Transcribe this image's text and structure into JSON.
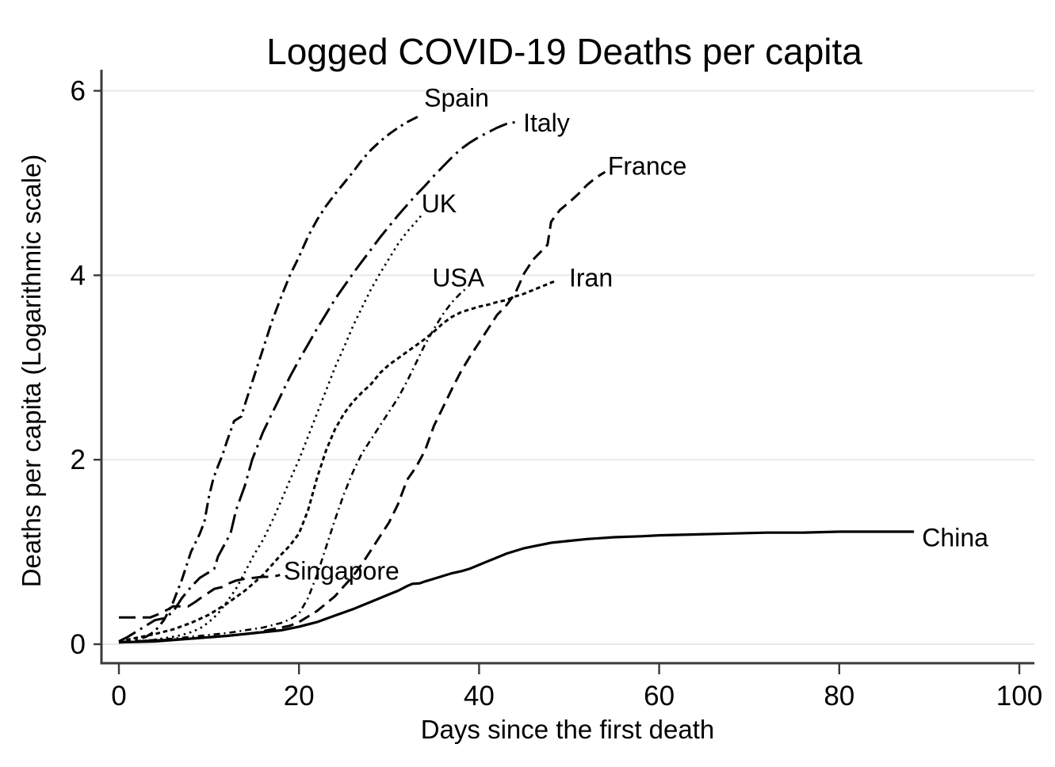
{
  "colors": {
    "background": "#ffffff",
    "line": "#000000",
    "grid": "#e8e8e8",
    "axis": "#3a3a3a",
    "text": "#000000"
  },
  "chart_data": {
    "type": "line",
    "title": "Logged COVID-19 Deaths per capita",
    "xlabel": "Days since the first death",
    "ylabel": "Deaths per capita (Logarithmic scale)",
    "xlim": [
      0,
      101.5
    ],
    "ylim": [
      0,
      6.4
    ],
    "xticks": [
      0,
      20,
      40,
      60,
      80,
      100
    ],
    "yticks": [
      0,
      2,
      4,
      6
    ],
    "grid": "horizontal",
    "legend": "inline-labels-at-line-ends",
    "series": [
      {
        "name": "Spain",
        "dash_style": "dash-dot",
        "label": {
          "day": 33.9,
          "value": 5.83
        },
        "points": [
          [
            0,
            0.02
          ],
          [
            1,
            0.03
          ],
          [
            2,
            0.05
          ],
          [
            3,
            0.08
          ],
          [
            4,
            0.14
          ],
          [
            5,
            0.26
          ],
          [
            6,
            0.45
          ],
          [
            7,
            0.7
          ],
          [
            8,
            1.0
          ],
          [
            9,
            1.2
          ],
          [
            9.5,
            1.33
          ],
          [
            10,
            1.6
          ],
          [
            10.5,
            1.8
          ],
          [
            11,
            1.93
          ],
          [
            11.5,
            2.05
          ],
          [
            12,
            2.2
          ],
          [
            12.8,
            2.42
          ],
          [
            13.6,
            2.47
          ],
          [
            14,
            2.6
          ],
          [
            15,
            2.9
          ],
          [
            16,
            3.2
          ],
          [
            17,
            3.5
          ],
          [
            18,
            3.76
          ],
          [
            19,
            4.0
          ],
          [
            20,
            4.2
          ],
          [
            21,
            4.42
          ],
          [
            22,
            4.6
          ],
          [
            23,
            4.75
          ],
          [
            24,
            4.88
          ],
          [
            25,
            5.0
          ],
          [
            26,
            5.12
          ],
          [
            27,
            5.25
          ],
          [
            28,
            5.36
          ],
          [
            29,
            5.45
          ],
          [
            30,
            5.53
          ],
          [
            31,
            5.6
          ],
          [
            32,
            5.66
          ],
          [
            33,
            5.71
          ],
          [
            33.6,
            5.74
          ]
        ]
      },
      {
        "name": "Italy",
        "dash_style": "long-dash-dot",
        "label": {
          "day": 44.9,
          "value": 5.56
        },
        "points": [
          [
            0,
            0.03
          ],
          [
            1,
            0.08
          ],
          [
            2,
            0.14
          ],
          [
            3,
            0.2
          ],
          [
            4,
            0.26
          ],
          [
            5,
            0.28
          ],
          [
            6,
            0.35
          ],
          [
            7,
            0.5
          ],
          [
            8,
            0.62
          ],
          [
            9,
            0.72
          ],
          [
            10,
            0.78
          ],
          [
            10.6,
            0.82
          ],
          [
            11,
            0.95
          ],
          [
            12,
            1.13
          ],
          [
            12.4,
            1.2
          ],
          [
            13,
            1.45
          ],
          [
            14,
            1.72
          ],
          [
            14.8,
            2.0
          ],
          [
            16,
            2.3
          ],
          [
            17,
            2.5
          ],
          [
            18,
            2.7
          ],
          [
            19,
            2.9
          ],
          [
            20,
            3.08
          ],
          [
            21,
            3.25
          ],
          [
            22,
            3.42
          ],
          [
            23,
            3.58
          ],
          [
            24,
            3.74
          ],
          [
            25,
            3.88
          ],
          [
            26,
            4.02
          ],
          [
            27,
            4.15
          ],
          [
            28,
            4.28
          ],
          [
            29,
            4.41
          ],
          [
            30,
            4.53
          ],
          [
            31,
            4.65
          ],
          [
            32,
            4.76
          ],
          [
            33,
            4.87
          ],
          [
            34,
            4.97
          ],
          [
            35,
            5.08
          ],
          [
            36,
            5.18
          ],
          [
            37,
            5.28
          ],
          [
            38,
            5.37
          ],
          [
            39,
            5.44
          ],
          [
            40,
            5.5
          ],
          [
            41,
            5.55
          ],
          [
            42,
            5.6
          ],
          [
            43,
            5.64
          ],
          [
            44.5,
            5.67
          ]
        ]
      },
      {
        "name": "France",
        "dash_style": "dash",
        "label": {
          "day": 54.3,
          "value": 5.09
        },
        "points": [
          [
            0,
            0.02
          ],
          [
            4,
            0.04
          ],
          [
            8,
            0.06
          ],
          [
            12,
            0.09
          ],
          [
            15,
            0.12
          ],
          [
            17,
            0.16
          ],
          [
            19,
            0.2
          ],
          [
            20,
            0.24
          ],
          [
            21,
            0.3
          ],
          [
            22,
            0.36
          ],
          [
            23,
            0.44
          ],
          [
            24,
            0.52
          ],
          [
            25,
            0.63
          ],
          [
            26,
            0.74
          ],
          [
            27,
            0.87
          ],
          [
            28,
            1.02
          ],
          [
            29,
            1.17
          ],
          [
            30,
            1.32
          ],
          [
            31,
            1.52
          ],
          [
            32,
            1.78
          ],
          [
            33,
            1.92
          ],
          [
            34,
            2.1
          ],
          [
            35,
            2.37
          ],
          [
            36,
            2.57
          ],
          [
            37,
            2.77
          ],
          [
            38,
            2.96
          ],
          [
            39,
            3.12
          ],
          [
            40,
            3.27
          ],
          [
            41,
            3.42
          ],
          [
            42,
            3.57
          ],
          [
            43,
            3.67
          ],
          [
            44,
            3.8
          ],
          [
            45,
            4.02
          ],
          [
            46,
            4.17
          ],
          [
            47,
            4.27
          ],
          [
            47.6,
            4.33
          ],
          [
            48,
            4.58
          ],
          [
            48.6,
            4.66
          ],
          [
            49,
            4.71
          ],
          [
            50,
            4.79
          ],
          [
            51,
            4.88
          ],
          [
            52,
            4.98
          ],
          [
            53,
            5.06
          ],
          [
            54,
            5.12
          ]
        ]
      },
      {
        "name": "UK",
        "dash_style": "dot",
        "label": {
          "day": 33.6,
          "value": 4.68
        },
        "points": [
          [
            0,
            0.02
          ],
          [
            2,
            0.03
          ],
          [
            4,
            0.05
          ],
          [
            6,
            0.08
          ],
          [
            7,
            0.1
          ],
          [
            8,
            0.13
          ],
          [
            9,
            0.17
          ],
          [
            10,
            0.24
          ],
          [
            11,
            0.33
          ],
          [
            12,
            0.46
          ],
          [
            13,
            0.6
          ],
          [
            14,
            0.78
          ],
          [
            15,
            0.97
          ],
          [
            16,
            1.13
          ],
          [
            17,
            1.33
          ],
          [
            18,
            1.55
          ],
          [
            19,
            1.78
          ],
          [
            20,
            2.0
          ],
          [
            21,
            2.25
          ],
          [
            22,
            2.5
          ],
          [
            23,
            2.75
          ],
          [
            24,
            3.0
          ],
          [
            25,
            3.22
          ],
          [
            26,
            3.45
          ],
          [
            27,
            3.65
          ],
          [
            28,
            3.85
          ],
          [
            29,
            4.02
          ],
          [
            30,
            4.18
          ],
          [
            31,
            4.34
          ],
          [
            32,
            4.47
          ],
          [
            33,
            4.58
          ],
          [
            33.6,
            4.65
          ]
        ]
      },
      {
        "name": "USA",
        "dash_style": "fine-dash-dot",
        "label": {
          "day": 34.8,
          "value": 3.88
        },
        "points": [
          [
            0,
            0.02
          ],
          [
            3,
            0.04
          ],
          [
            6,
            0.06
          ],
          [
            9,
            0.09
          ],
          [
            12,
            0.12
          ],
          [
            14,
            0.15
          ],
          [
            16,
            0.18
          ],
          [
            18,
            0.23
          ],
          [
            19,
            0.27
          ],
          [
            20,
            0.33
          ],
          [
            21,
            0.5
          ],
          [
            22,
            0.75
          ],
          [
            23,
            1.05
          ],
          [
            24,
            1.35
          ],
          [
            25,
            1.63
          ],
          [
            26,
            1.87
          ],
          [
            27,
            2.07
          ],
          [
            28,
            2.22
          ],
          [
            29,
            2.37
          ],
          [
            30,
            2.52
          ],
          [
            31,
            2.67
          ],
          [
            32,
            2.85
          ],
          [
            33,
            3.05
          ],
          [
            34,
            3.25
          ],
          [
            35,
            3.42
          ],
          [
            36,
            3.58
          ],
          [
            37,
            3.71
          ],
          [
            38,
            3.81
          ],
          [
            38.6,
            3.86
          ]
        ]
      },
      {
        "name": "Iran",
        "dash_style": "short-dash",
        "label": {
          "day": 50.0,
          "value": 3.88
        },
        "points": [
          [
            0,
            0.03
          ],
          [
            2,
            0.07
          ],
          [
            4,
            0.11
          ],
          [
            6,
            0.16
          ],
          [
            8,
            0.23
          ],
          [
            10,
            0.32
          ],
          [
            12,
            0.44
          ],
          [
            14,
            0.58
          ],
          [
            16,
            0.75
          ],
          [
            18,
            0.97
          ],
          [
            19,
            1.07
          ],
          [
            20,
            1.2
          ],
          [
            21,
            1.45
          ],
          [
            22,
            1.8
          ],
          [
            23,
            2.1
          ],
          [
            24,
            2.33
          ],
          [
            25,
            2.5
          ],
          [
            26,
            2.63
          ],
          [
            27,
            2.73
          ],
          [
            28,
            2.82
          ],
          [
            29,
            2.94
          ],
          [
            30,
            3.03
          ],
          [
            31,
            3.1
          ],
          [
            32,
            3.17
          ],
          [
            33,
            3.24
          ],
          [
            34,
            3.31
          ],
          [
            35,
            3.39
          ],
          [
            36,
            3.48
          ],
          [
            37,
            3.55
          ],
          [
            38,
            3.6
          ],
          [
            39,
            3.63
          ],
          [
            40,
            3.66
          ],
          [
            41,
            3.68
          ],
          [
            42,
            3.71
          ],
          [
            43,
            3.73
          ],
          [
            44,
            3.77
          ],
          [
            45,
            3.8
          ],
          [
            46,
            3.84
          ],
          [
            47,
            3.88
          ],
          [
            48,
            3.92
          ],
          [
            48.6,
            3.94
          ]
        ]
      },
      {
        "name": "Singapore",
        "dash_style": "long-dash",
        "label": {
          "day": 18.3,
          "value": 0.7
        },
        "points": [
          [
            0,
            0.29
          ],
          [
            3.5,
            0.29
          ],
          [
            4.5,
            0.33
          ],
          [
            5.5,
            0.38
          ],
          [
            6,
            0.41
          ],
          [
            7.7,
            0.41
          ],
          [
            8.5,
            0.46
          ],
          [
            9.5,
            0.53
          ],
          [
            10,
            0.56
          ],
          [
            10.6,
            0.6
          ],
          [
            11.5,
            0.62
          ],
          [
            12,
            0.65
          ],
          [
            13,
            0.69
          ],
          [
            14,
            0.71
          ],
          [
            15,
            0.72
          ],
          [
            16,
            0.73
          ],
          [
            17,
            0.73
          ],
          [
            17.9,
            0.75
          ]
        ]
      },
      {
        "name": "China",
        "dash_style": "solid",
        "label": {
          "day": 89.2,
          "value": 1.06
        },
        "points": [
          [
            0,
            0.02
          ],
          [
            4,
            0.03
          ],
          [
            8,
            0.06
          ],
          [
            12,
            0.09
          ],
          [
            15,
            0.12
          ],
          [
            18,
            0.15
          ],
          [
            20,
            0.19
          ],
          [
            22,
            0.24
          ],
          [
            24,
            0.31
          ],
          [
            26,
            0.38
          ],
          [
            28,
            0.46
          ],
          [
            30,
            0.54
          ],
          [
            31,
            0.58
          ],
          [
            32,
            0.63
          ],
          [
            32.6,
            0.655
          ],
          [
            33.4,
            0.66
          ],
          [
            34,
            0.68
          ],
          [
            35,
            0.71
          ],
          [
            36,
            0.74
          ],
          [
            37,
            0.77
          ],
          [
            38,
            0.79
          ],
          [
            39,
            0.82
          ],
          [
            40,
            0.86
          ],
          [
            41,
            0.9
          ],
          [
            42,
            0.94
          ],
          [
            43,
            0.98
          ],
          [
            44,
            1.01
          ],
          [
            45,
            1.04
          ],
          [
            46,
            1.06
          ],
          [
            47,
            1.08
          ],
          [
            48,
            1.1
          ],
          [
            50,
            1.12
          ],
          [
            52,
            1.14
          ],
          [
            55,
            1.16
          ],
          [
            58,
            1.17
          ],
          [
            60,
            1.18
          ],
          [
            64,
            1.19
          ],
          [
            68,
            1.2
          ],
          [
            72,
            1.21
          ],
          [
            76,
            1.21
          ],
          [
            80,
            1.22
          ],
          [
            84,
            1.22
          ],
          [
            88.3,
            1.22
          ]
        ]
      }
    ]
  }
}
